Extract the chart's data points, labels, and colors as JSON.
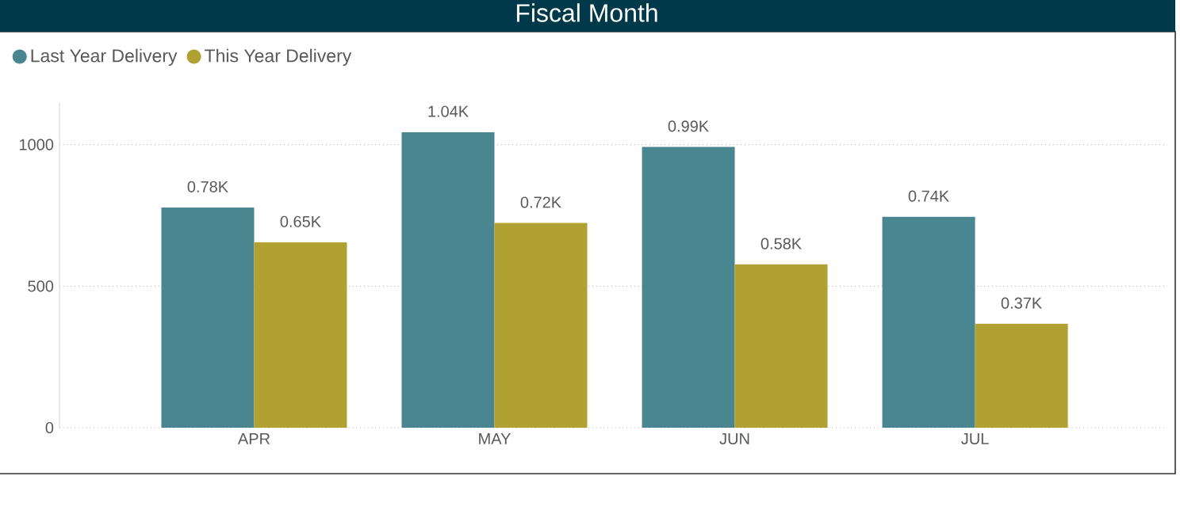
{
  "chart_data": {
    "type": "bar",
    "title": "Fiscal Month",
    "categories": [
      "APR",
      "MAY",
      "JUN",
      "JUL"
    ],
    "series": [
      {
        "name": "Last Year Delivery",
        "color": "#4a8690",
        "values": [
          778,
          1044,
          992,
          745
        ],
        "value_labels": [
          "0.78K",
          "1.04K",
          "0.99K",
          "0.74K"
        ]
      },
      {
        "name": "This Year Delivery",
        "color": "#b0a132",
        "values": [
          655,
          723,
          577,
          367
        ],
        "value_labels": [
          "0.65K",
          "0.72K",
          "0.58K",
          "0.37K"
        ]
      }
    ],
    "ylim": [
      0,
      1150
    ],
    "yticks": [
      0,
      500,
      1000
    ],
    "grid": "y",
    "legend": "top left"
  }
}
